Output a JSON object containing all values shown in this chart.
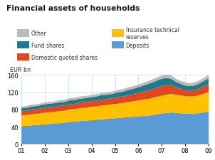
{
  "title": "Financial assets of households",
  "ylabel": "EUR bn",
  "ylim": [
    0,
    160
  ],
  "yticks": [
    0,
    40,
    80,
    120,
    160
  ],
  "x_labels": [
    "01",
    "02",
    "03",
    "04",
    "05",
    "06",
    "07",
    "08",
    "09"
  ],
  "colors": {
    "Deposits": "#5B9BD5",
    "Insurance": "#FFC000",
    "Domestic": "#E04820",
    "Fund": "#1F7A8C",
    "Other": "#BBBBBB"
  },
  "legend_labels_left": [
    "Other",
    "Fund shares",
    "Domestic quoted shares"
  ],
  "legend_labels_right": [
    "Insurance technical\nreserves",
    "Deposits"
  ],
  "background_color": "#ffffff",
  "grid_color": "#BDD7EE",
  "deposits": [
    41,
    42,
    43,
    44,
    45,
    46,
    47,
    48,
    49,
    51,
    52,
    53,
    54,
    55,
    56,
    57,
    58,
    59,
    60,
    61,
    62,
    63,
    64,
    65,
    66,
    68,
    70,
    72,
    73,
    72,
    71,
    70,
    70,
    71,
    73,
    75
  ],
  "insurance": [
    25,
    25,
    26,
    26,
    27,
    27,
    27,
    28,
    28,
    29,
    29,
    30,
    30,
    31,
    31,
    32,
    32,
    33,
    33,
    34,
    35,
    36,
    37,
    38,
    39,
    40,
    41,
    42,
    43,
    42,
    41,
    40,
    40,
    41,
    43,
    45
  ],
  "domestic": [
    10,
    10,
    11,
    11,
    11,
    12,
    12,
    12,
    12,
    12,
    12,
    13,
    13,
    13,
    13,
    14,
    14,
    14,
    15,
    15,
    16,
    17,
    18,
    19,
    20,
    21,
    22,
    22,
    20,
    17,
    15,
    14,
    14,
    15,
    17,
    19
  ],
  "fund": [
    7,
    7,
    7,
    7,
    8,
    8,
    8,
    8,
    8,
    9,
    9,
    9,
    9,
    9,
    10,
    10,
    10,
    10,
    11,
    11,
    12,
    12,
    13,
    14,
    15,
    16,
    17,
    17,
    15,
    12,
    11,
    10,
    10,
    11,
    12,
    13
  ],
  "other": [
    4,
    4,
    4,
    4,
    4,
    4,
    4,
    5,
    5,
    5,
    5,
    5,
    5,
    5,
    5,
    5,
    5,
    5,
    6,
    6,
    6,
    6,
    6,
    6,
    7,
    7,
    7,
    8,
    8,
    7,
    7,
    7,
    7,
    7,
    7,
    8
  ]
}
